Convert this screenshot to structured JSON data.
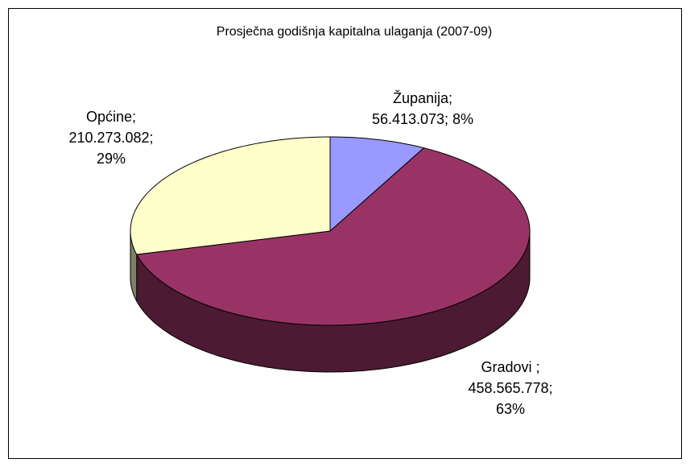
{
  "chart_data": {
    "type": "pie3d",
    "title": "Prosječna godišnja kapitalna ulaganja (2007-09)",
    "categories": [
      "Županija;",
      "Gradovi ;",
      "Općine;"
    ],
    "values": [
      56413073,
      458565778,
      210273082
    ],
    "value_labels": [
      "56.413.073;",
      "458.565.778;",
      "210.273.082;"
    ],
    "percents": [
      8,
      63,
      29
    ],
    "percent_labels": [
      "8%",
      "63%",
      "29%"
    ],
    "colors": [
      "#9999ff",
      "#993366",
      "#ffffcc"
    ]
  }
}
